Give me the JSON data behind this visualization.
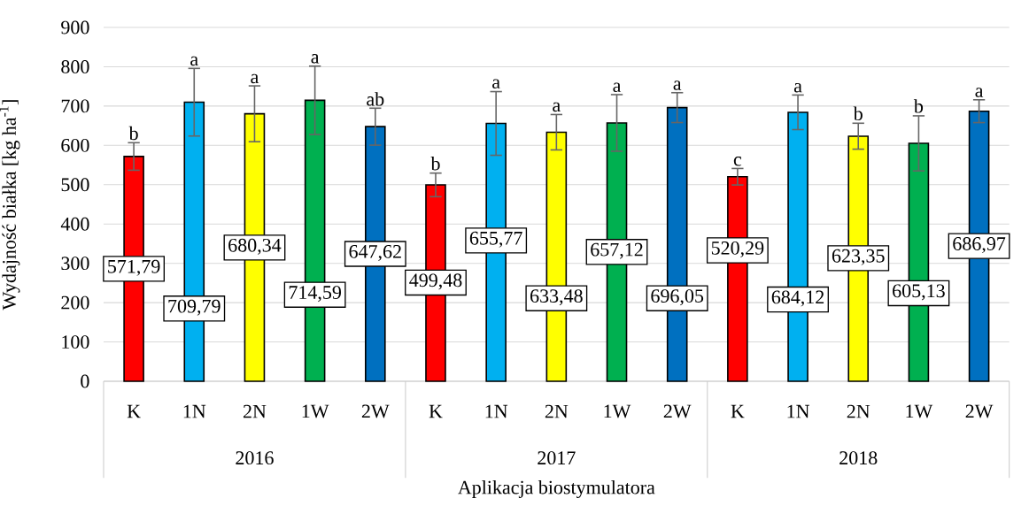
{
  "chart_data": {
    "type": "bar",
    "xlabel": "Aplikacja biostymulatora",
    "ylabel": "Wydajność białka [kg ha$^{-1}$]",
    "categories": [
      "K",
      "1N",
      "2N",
      "1W",
      "2W",
      "K",
      "1N",
      "2N",
      "1W",
      "2W",
      "K",
      "1N",
      "2N",
      "1W",
      "2W"
    ],
    "values": [
      571.79,
      709.79,
      680.34,
      714.59,
      647.62,
      499.48,
      655.77,
      633.48,
      657.12,
      696.05,
      520.29,
      684.12,
      623.35,
      605.13,
      686.97
    ],
    "colors": [
      "#ff0000",
      "#00b0f0",
      "#ffff00",
      "#00b050",
      "#0070c0",
      "#ff0000",
      "#00b0f0",
      "#ffff00",
      "#00b050",
      "#0070c0",
      "#ff0000",
      "#00b0f0",
      "#ffff00",
      "#00b050",
      "#0070c0"
    ],
    "errors": [
      35,
      86,
      71,
      87,
      47,
      30,
      81,
      45,
      72,
      38,
      21,
      44,
      33,
      70,
      29
    ],
    "value_labels": [
      "571,79",
      "709,79",
      "680,34",
      "714,59",
      "647,62",
      "499,48",
      "655,77",
      "633,48",
      "657,12",
      "696,05",
      "520,29",
      "684,12",
      "623,35",
      "605,13",
      "686,97"
    ],
    "annotations": [
      {
        "text": "b",
        "y": 607
      },
      {
        "text": "a",
        "y": 796
      },
      {
        "text": "a",
        "y": 751
      },
      {
        "text": "a",
        "y": 802
      },
      {
        "text": "ab",
        "y": 694
      },
      {
        "text": "b",
        "y": 530
      },
      {
        "text": "a",
        "y": 738
      },
      {
        "text": "a",
        "y": 679
      },
      {
        "text": "a",
        "y": 729
      },
      {
        "text": "a",
        "y": 734
      },
      {
        "text": "c",
        "y": 541
      },
      {
        "text": "a",
        "y": 728
      },
      {
        "text": "b",
        "y": 657
      },
      {
        "text": "b",
        "y": 676
      },
      {
        "text": "a",
        "y": 716
      },
      "2016",
      "2017",
      "2018"
    ],
    "ylim": [
      0,
      900
    ],
    "yticks": [
      0,
      100,
      200,
      300,
      400,
      500,
      600,
      700,
      800,
      900
    ],
    "grid": "y"
  }
}
